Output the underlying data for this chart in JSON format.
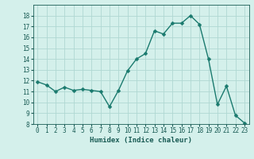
{
  "x": [
    0,
    1,
    2,
    3,
    4,
    5,
    6,
    7,
    8,
    9,
    10,
    11,
    12,
    13,
    14,
    15,
    16,
    17,
    18,
    19,
    20,
    21,
    22,
    23
  ],
  "y": [
    11.9,
    11.6,
    11.0,
    11.4,
    11.1,
    11.2,
    11.1,
    11.0,
    9.6,
    11.1,
    12.9,
    14.0,
    14.5,
    16.6,
    16.3,
    17.3,
    17.3,
    18.0,
    17.2,
    14.0,
    9.8,
    11.5,
    8.8,
    8.1
  ],
  "line_color": "#1a7a6e",
  "marker_color": "#1a7a6e",
  "bg_color": "#d4f0eb",
  "grid_color": "#b0d8d2",
  "text_color": "#1a5c55",
  "xlabel": "Humidex (Indice chaleur)",
  "ylim": [
    8,
    19
  ],
  "xlim": [
    -0.5,
    23.5
  ],
  "yticks": [
    8,
    9,
    10,
    11,
    12,
    13,
    14,
    15,
    16,
    17,
    18
  ],
  "xticks": [
    0,
    1,
    2,
    3,
    4,
    5,
    6,
    7,
    8,
    9,
    10,
    11,
    12,
    13,
    14,
    15,
    16,
    17,
    18,
    19,
    20,
    21,
    22,
    23
  ],
  "xlabel_fontsize": 6.5,
  "tick_fontsize": 5.5,
  "marker_size": 2.5,
  "linewidth": 1.0
}
